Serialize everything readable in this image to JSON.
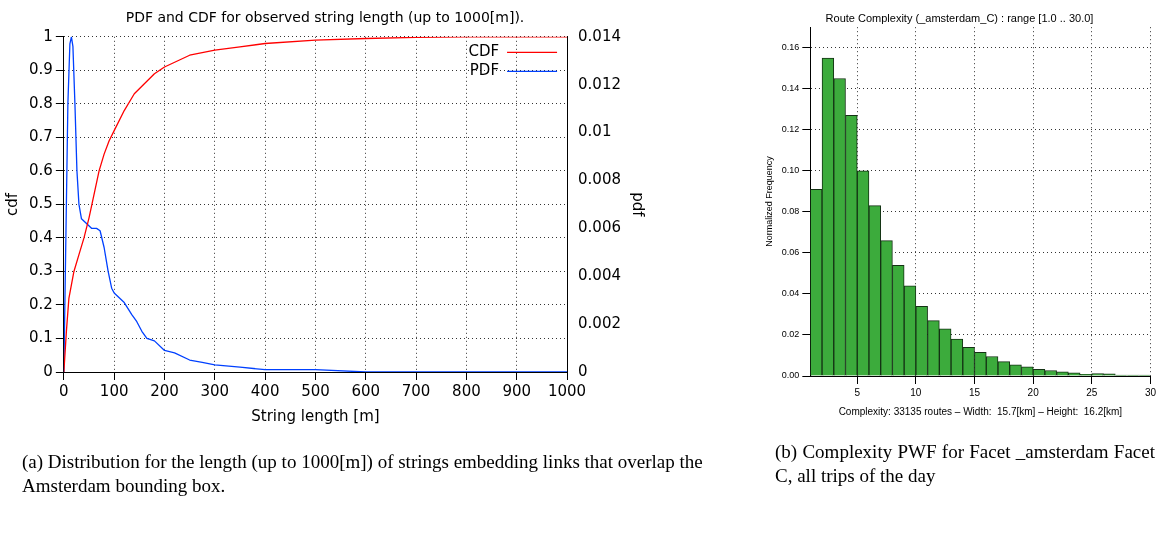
{
  "chart_data": [
    {
      "type": "line",
      "title": "PDF and CDF for observed string length (up to 1000[m]).",
      "xlabel": "String length [m]",
      "ylabel": "cdf",
      "y2label": "pdf",
      "xlim": [
        0,
        1000
      ],
      "xticks": [
        0,
        100,
        200,
        300,
        400,
        500,
        600,
        700,
        800,
        900,
        1000
      ],
      "ylim": [
        0,
        1
      ],
      "yticks": [
        0,
        0.1,
        0.2,
        0.3,
        0.4,
        0.5,
        0.6,
        0.7,
        0.8,
        0.9,
        1
      ],
      "y2lim": [
        0,
        0.014
      ],
      "y2ticks": [
        0,
        0.002,
        0.004,
        0.006,
        0.008,
        0.01,
        0.012,
        0.014
      ],
      "grid": true,
      "legend": "top right",
      "marker": "none",
      "line_style": "solid",
      "series": [
        {
          "name": "CDF",
          "color": "#ff0000",
          "x": [
            0,
            5,
            10,
            20,
            30,
            40,
            50,
            60,
            70,
            80,
            90,
            100,
            120,
            140,
            160,
            180,
            200,
            250,
            300,
            350,
            400,
            500,
            600,
            700,
            800,
            1000
          ],
          "values": [
            0,
            0.12,
            0.22,
            0.3,
            0.35,
            0.4,
            0.46,
            0.53,
            0.6,
            0.65,
            0.69,
            0.72,
            0.78,
            0.83,
            0.86,
            0.89,
            0.91,
            0.945,
            0.96,
            0.97,
            0.98,
            0.99,
            0.995,
            0.998,
            1,
            1
          ]
        },
        {
          "name": "PDF",
          "color": "#0040ff",
          "axis": "y2",
          "x": [
            0,
            4,
            8,
            12,
            15,
            18,
            22,
            26,
            30,
            35,
            45,
            55,
            65,
            72,
            80,
            88,
            95,
            100,
            110,
            120,
            135,
            145,
            155,
            165,
            180,
            200,
            220,
            250,
            275,
            300,
            350,
            400,
            500,
            600,
            800,
            1000
          ],
          "values": [
            0,
            0.0056,
            0.0112,
            0.0137,
            0.014,
            0.0136,
            0.0112,
            0.0084,
            0.007,
            0.0064,
            0.0062,
            0.006,
            0.006,
            0.0059,
            0.0052,
            0.0042,
            0.0035,
            0.0033,
            0.0031,
            0.0029,
            0.0024,
            0.0021,
            0.0017,
            0.0014,
            0.0013,
            0.0009,
            0.0008,
            0.0005,
            0.0004,
            0.0003,
            0.0002,
            0.0001,
            0.0001,
            0,
            0,
            0
          ]
        }
      ],
      "annotations": [
        "(a) Distribution for the length (up to 1000[m]) of strings embedding links that overlap the Amsterdam bounding box."
      ]
    },
    {
      "type": "histogram",
      "title": "Route Complexity (_amsterdam_C) : range [1.0 .. 30.0]",
      "xlabel": "Complexity: 33135 routes – Width:  15.7[km] – Height:  16.2[km]",
      "ylabel": "Normalized Frequency",
      "bins": [
        1,
        2,
        3,
        4,
        5,
        6,
        7,
        8,
        9,
        10,
        11,
        12,
        13,
        14,
        15,
        16,
        17,
        18,
        19,
        20,
        21,
        22,
        23,
        24,
        25,
        26,
        27,
        28,
        29,
        30
      ],
      "values": [
        0.091,
        0.155,
        0.145,
        0.127,
        0.1,
        0.083,
        0.066,
        0.054,
        0.044,
        0.034,
        0.027,
        0.023,
        0.018,
        0.014,
        0.0115,
        0.0095,
        0.007,
        0.0055,
        0.0045,
        0.0033,
        0.0027,
        0.002,
        0.0015,
        0.0008,
        0.0012,
        0.001,
        0.0005,
        0.0005,
        0.0005
      ],
      "color": "#3cab3c",
      "xlim": [
        1,
        30
      ],
      "xticks": [
        5,
        10,
        15,
        20,
        25,
        30
      ],
      "ylim": [
        0,
        0.17
      ],
      "yticks": [
        {
          "value": 0,
          "label": "0.00"
        },
        {
          "value": 0.02,
          "label": "0.02"
        },
        {
          "value": 0.04,
          "label": "0.04"
        },
        {
          "value": 0.06,
          "label": "0.06"
        },
        {
          "value": 0.08,
          "label": "0.08"
        },
        {
          "value": 0.1,
          "label": "0.10"
        },
        {
          "value": 0.12,
          "label": "0.12"
        },
        {
          "value": 0.14,
          "label": "0.14"
        },
        {
          "value": 0.16,
          "label": "0.16"
        }
      ],
      "grid": true,
      "annotations": [
        "(b) Complexity PWF for Facet _amsterdam Facet C, all trips of the day"
      ]
    }
  ]
}
